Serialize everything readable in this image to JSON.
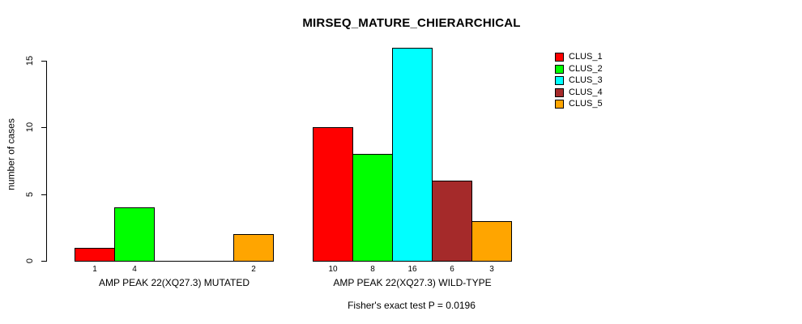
{
  "chart_data": {
    "type": "bar",
    "title": "MIRSEQ_MATURE_CHIERARCHICAL",
    "ylabel": "number of cases",
    "xlabel": "",
    "yticks": [
      0,
      5,
      10,
      15
    ],
    "ylim": [
      0,
      16
    ],
    "grid": false,
    "legend_position": "top-right",
    "legend": [
      {
        "label": "CLUS_1",
        "color": "#ff0000"
      },
      {
        "label": "CLUS_2",
        "color": "#00ff00"
      },
      {
        "label": "CLUS_3",
        "color": "#00ffff"
      },
      {
        "label": "CLUS_4",
        "color": "#a52a2a"
      },
      {
        "label": "CLUS_5",
        "color": "#ffa500"
      }
    ],
    "groups": [
      {
        "label": "AMP PEAK 22(XQ27.3) MUTATED",
        "values": [
          1,
          4,
          0,
          0,
          2
        ],
        "bar_labels": [
          "1",
          "4",
          "",
          "",
          "2"
        ]
      },
      {
        "label": "AMP PEAK 22(XQ27.3) WILD-TYPE",
        "values": [
          10,
          8,
          16,
          6,
          3
        ],
        "bar_labels": [
          "10",
          "8",
          "16",
          "6",
          "3"
        ]
      }
    ],
    "annotation": "Fisher's exact test P = 0.0196",
    "axis_color": "#000000",
    "bar_border_color": "#000000"
  }
}
